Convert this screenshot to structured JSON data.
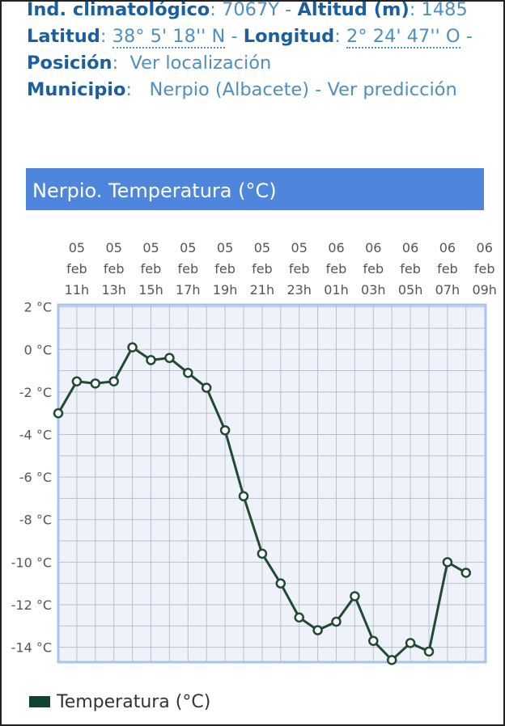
{
  "station": {
    "climate_index_label": "Ind. climatológico",
    "climate_index_value": "7067Y -",
    "altitude_label": "Altitud (m)",
    "altitude_value": "1485",
    "latitude_label": "Latitud",
    "latitude_value": "38° 5' 18'' N",
    "longitude_label": "Longitud",
    "longitude_value": "2° 24' 47'' O",
    "position_label": "Posición",
    "position_link": "Ver localización",
    "municipality_label": "Municipio",
    "municipality_value": "Nerpio (Albacete) -",
    "forecast_link": "Ver predicción",
    "separator_colon": ":",
    "separator_dash": "-"
  },
  "colors": {
    "banner": "#4e86de",
    "series_line": "#1f4a33",
    "grid": "#b9bfcc",
    "plot_bg": "#f0f2fb",
    "plot_border": "#a8c4ee"
  },
  "chart_data": {
    "type": "line",
    "title": "Nerpio. Temperatura (°C)",
    "x_tick_labels": [
      [
        "05",
        "feb",
        "11h"
      ],
      [
        "05",
        "feb",
        "13h"
      ],
      [
        "05",
        "feb",
        "15h"
      ],
      [
        "05",
        "feb",
        "17h"
      ],
      [
        "05",
        "feb",
        "19h"
      ],
      [
        "05",
        "feb",
        "21h"
      ],
      [
        "05",
        "feb",
        "23h"
      ],
      [
        "06",
        "feb",
        "01h"
      ],
      [
        "06",
        "feb",
        "03h"
      ],
      [
        "06",
        "feb",
        "05h"
      ],
      [
        "06",
        "feb",
        "07h"
      ],
      [
        "06",
        "feb",
        "09h"
      ]
    ],
    "y_ticks": [
      2,
      0,
      -2,
      -4,
      -6,
      -8,
      -10,
      -12,
      -14
    ],
    "y_tick_labels": [
      "2 °C",
      "0 °C",
      "-2 °C",
      "-4 °C",
      "-6 °C",
      "-8 °C",
      "-10 °C",
      "-12 °C",
      "-14 °C"
    ],
    "ylim": [
      -14.7,
      2.1
    ],
    "x_points": 23,
    "grid": true,
    "legend_position": "bottom-left",
    "series": [
      {
        "name": "Temperatura (°C)",
        "values": [
          -3.0,
          -1.5,
          -1.6,
          -1.5,
          0.1,
          -0.5,
          -0.4,
          -1.1,
          -1.8,
          -3.8,
          -6.9,
          -9.6,
          -11.0,
          -12.6,
          -13.2,
          -12.8,
          -11.6,
          -13.7,
          -14.6,
          -13.8,
          -14.2,
          -10.0,
          -10.5
        ]
      }
    ]
  }
}
